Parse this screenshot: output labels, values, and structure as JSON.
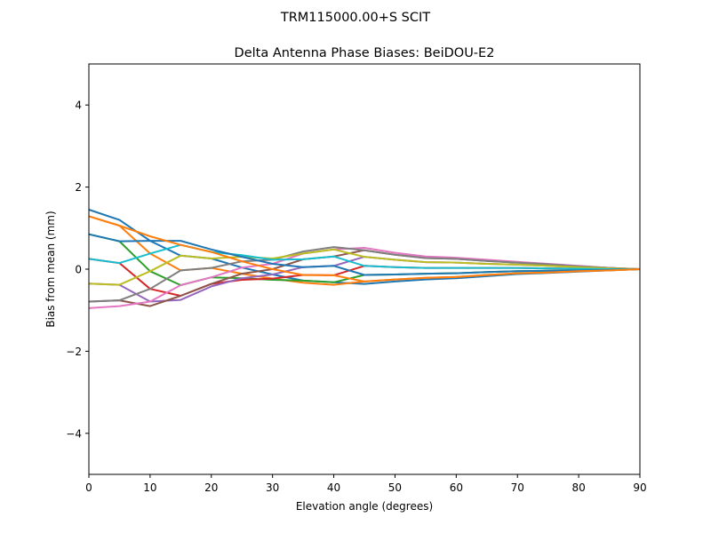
{
  "chart_data": {
    "type": "line",
    "suptitle": "TRM115000.00+S  SCIT",
    "title": "Delta Antenna Phase Biases: BeiDOU-E2",
    "xlabel": "Elevation angle (degrees)",
    "ylabel": "Bias from mean (mm)",
    "xlim": [
      0,
      90
    ],
    "ylim": [
      -5,
      5
    ],
    "xticks": [
      0,
      10,
      20,
      30,
      40,
      50,
      60,
      70,
      80,
      90
    ],
    "yticks": [
      -4,
      -2,
      0,
      2,
      4
    ],
    "ytick_labels": [
      "−4",
      "−2",
      "0",
      "2",
      "4"
    ],
    "grid": false,
    "legend": "none",
    "colors": [
      "#1f77b4",
      "#ff7f0e",
      "#2ca02c",
      "#d62728",
      "#9467bd",
      "#8c564b",
      "#e377c2",
      "#7f7f7f",
      "#bcbd22",
      "#17becf"
    ],
    "x": [
      0,
      5,
      10,
      15,
      20,
      25,
      30,
      35,
      40,
      45,
      50,
      55,
      60,
      65,
      70,
      75,
      80,
      85,
      90
    ],
    "series": [
      {
        "values": [
          1.45,
          1.2,
          0.69,
          0.33,
          0.26,
          0.04,
          -0.13,
          -0.28,
          -0.32,
          -0.36,
          -0.3,
          -0.25,
          -0.22,
          -0.17,
          -0.12,
          -0.09,
          -0.06,
          -0.03,
          0
        ]
      },
      {
        "values": [
          1.29,
          1.06,
          0.38,
          -0.03,
          0.03,
          -0.11,
          -0.23,
          -0.33,
          -0.38,
          -0.3,
          -0.25,
          -0.21,
          -0.19,
          -0.14,
          -0.1,
          -0.08,
          -0.05,
          -0.03,
          0
        ]
      },
      {
        "values": [
          0.85,
          0.68,
          -0.05,
          -0.39,
          -0.2,
          -0.22,
          -0.26,
          -0.28,
          -0.32,
          -0.14,
          -0.13,
          -0.11,
          -0.1,
          -0.07,
          -0.05,
          -0.04,
          -0.03,
          -0.02,
          0
        ]
      },
      {
        "values": [
          0.25,
          0.15,
          -0.48,
          -0.65,
          -0.36,
          -0.26,
          -0.23,
          -0.14,
          -0.15,
          0.08,
          0.05,
          0.03,
          0.03,
          0.03,
          0.03,
          0.02,
          0.01,
          0,
          0
        ]
      },
      {
        "values": [
          -0.35,
          -0.38,
          -0.79,
          -0.75,
          -0.42,
          -0.22,
          -0.13,
          0.05,
          0.08,
          0.3,
          0.23,
          0.17,
          0.16,
          0.13,
          0.11,
          0.08,
          0.05,
          0.02,
          0
        ]
      },
      {
        "values": [
          -0.79,
          -0.76,
          -0.9,
          -0.65,
          -0.36,
          -0.11,
          0,
          0.24,
          0.31,
          0.46,
          0.35,
          0.27,
          0.25,
          0.2,
          0.16,
          0.12,
          0.07,
          0.03,
          0
        ]
      },
      {
        "values": [
          -0.95,
          -0.9,
          -0.79,
          -0.39,
          -0.2,
          0.04,
          0.13,
          0.38,
          0.48,
          0.52,
          0.4,
          0.31,
          0.28,
          0.23,
          0.18,
          0.13,
          0.08,
          0.03,
          0
        ]
      },
      {
        "values": [
          -0.79,
          -0.76,
          -0.48,
          -0.03,
          0.03,
          0.19,
          0.23,
          0.43,
          0.54,
          0.46,
          0.35,
          0.27,
          0.25,
          0.2,
          0.16,
          0.12,
          0.07,
          0.03,
          0
        ]
      },
      {
        "values": [
          -0.35,
          -0.38,
          -0.05,
          0.33,
          0.26,
          0.3,
          0.26,
          0.38,
          0.48,
          0.3,
          0.23,
          0.17,
          0.16,
          0.13,
          0.11,
          0.08,
          0.05,
          0.02,
          0
        ]
      },
      {
        "values": [
          0.25,
          0.15,
          0.38,
          0.59,
          0.42,
          0.34,
          0.23,
          0.24,
          0.31,
          0.08,
          0.05,
          0.03,
          0.03,
          0.03,
          0.03,
          0.02,
          0.01,
          0,
          0
        ]
      },
      {
        "values": [
          0.85,
          0.68,
          0.69,
          0.69,
          0.48,
          0.3,
          0.13,
          0.05,
          0.08,
          -0.14,
          -0.13,
          -0.11,
          -0.1,
          -0.07,
          -0.05,
          -0.04,
          -0.03,
          -0.02,
          0
        ]
      },
      {
        "values": [
          1.29,
          1.06,
          0.8,
          0.59,
          0.42,
          0.19,
          0,
          -0.14,
          -0.15,
          -0.3,
          -0.25,
          -0.21,
          -0.19,
          -0.14,
          -0.1,
          -0.08,
          -0.05,
          -0.03,
          0
        ]
      }
    ]
  }
}
